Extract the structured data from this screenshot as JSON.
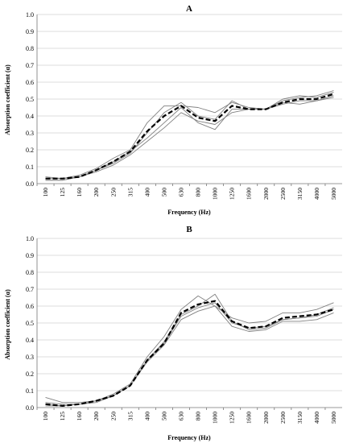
{
  "chart_data": [
    {
      "type": "line",
      "title": "A",
      "xlabel": "Frequency (Hz)",
      "ylabel": "Absorption coefficient  (α)",
      "ylim": [
        0,
        1
      ],
      "yticks": [
        "0.0",
        "0.1",
        "0.2",
        "0.3",
        "0.4",
        "0.5",
        "0.6",
        "0.7",
        "0.8",
        "0.9",
        "1.0"
      ],
      "grid": true,
      "categories": [
        "100",
        "125",
        "160",
        "200",
        "250",
        "315",
        "400",
        "500",
        "630",
        "800",
        "1000",
        "1250",
        "1600",
        "2000",
        "2500",
        "3150",
        "4000",
        "5000"
      ],
      "series": [
        {
          "style": "solid",
          "color": "#808080",
          "values": [
            0.04,
            0.03,
            0.05,
            0.09,
            0.15,
            0.2,
            0.36,
            0.46,
            0.46,
            0.45,
            0.42,
            0.48,
            0.45,
            0.44,
            0.49,
            0.51,
            0.52,
            0.55
          ]
        },
        {
          "style": "solid",
          "color": "#808080",
          "values": [
            0.03,
            0.03,
            0.04,
            0.08,
            0.12,
            0.18,
            0.3,
            0.42,
            0.48,
            0.4,
            0.38,
            0.49,
            0.44,
            0.44,
            0.5,
            0.52,
            0.51,
            0.54
          ]
        },
        {
          "style": "solid",
          "color": "#808080",
          "values": [
            0.02,
            0.02,
            0.04,
            0.08,
            0.13,
            0.19,
            0.27,
            0.36,
            0.45,
            0.36,
            0.32,
            0.44,
            0.44,
            0.44,
            0.48,
            0.47,
            0.49,
            0.52
          ]
        },
        {
          "style": "solid",
          "color": "#808080",
          "values": [
            0.02,
            0.02,
            0.04,
            0.07,
            0.11,
            0.17,
            0.25,
            0.33,
            0.42,
            0.37,
            0.35,
            0.42,
            0.44,
            0.44,
            0.47,
            0.49,
            0.49,
            0.51
          ]
        },
        {
          "style": "dashed",
          "color": "#000000",
          "values": [
            0.03,
            0.03,
            0.04,
            0.08,
            0.13,
            0.19,
            0.31,
            0.4,
            0.46,
            0.39,
            0.37,
            0.46,
            0.44,
            0.44,
            0.48,
            0.5,
            0.5,
            0.53
          ]
        }
      ]
    },
    {
      "type": "line",
      "title": "B",
      "xlabel": "Frequency (Hz)",
      "ylabel": "Absorption coefficient  (α)",
      "ylim": [
        0,
        1
      ],
      "yticks": [
        "0.0",
        "0.1",
        "0.2",
        "0.3",
        "0.4",
        "0.5",
        "0.6",
        "0.7",
        "0.8",
        "0.9",
        "1.0"
      ],
      "grid": true,
      "categories": [
        "100",
        "125",
        "160",
        "200",
        "250",
        "315",
        "400",
        "500",
        "630",
        "800",
        "1000",
        "1250",
        "1600",
        "2000",
        "2500",
        "3150",
        "4000",
        "5000"
      ],
      "series": [
        {
          "style": "solid",
          "color": "#808080",
          "values": [
            0.06,
            0.03,
            0.03,
            0.04,
            0.08,
            0.14,
            0.3,
            0.42,
            0.58,
            0.66,
            0.6,
            0.53,
            0.5,
            0.51,
            0.56,
            0.56,
            0.58,
            0.62
          ]
        },
        {
          "style": "solid",
          "color": "#808080",
          "values": [
            0.03,
            0.02,
            0.02,
            0.04,
            0.07,
            0.13,
            0.28,
            0.39,
            0.55,
            0.6,
            0.67,
            0.51,
            0.46,
            0.47,
            0.52,
            0.53,
            0.54,
            0.58
          ]
        },
        {
          "style": "solid",
          "color": "#808080",
          "values": [
            0.01,
            0.01,
            0.02,
            0.03,
            0.07,
            0.13,
            0.27,
            0.37,
            0.52,
            0.57,
            0.6,
            0.48,
            0.45,
            0.46,
            0.51,
            0.51,
            0.52,
            0.56
          ]
        },
        {
          "style": "solid",
          "color": "#808080",
          "values": [
            0.02,
            0.01,
            0.02,
            0.04,
            0.07,
            0.13,
            0.28,
            0.38,
            0.54,
            0.59,
            0.62,
            0.5,
            0.47,
            0.48,
            0.52,
            0.53,
            0.55,
            0.59
          ]
        },
        {
          "style": "dashed",
          "color": "#000000",
          "values": [
            0.02,
            0.01,
            0.02,
            0.04,
            0.07,
            0.13,
            0.28,
            0.38,
            0.56,
            0.61,
            0.63,
            0.51,
            0.47,
            0.48,
            0.53,
            0.54,
            0.55,
            0.58
          ]
        }
      ]
    }
  ]
}
